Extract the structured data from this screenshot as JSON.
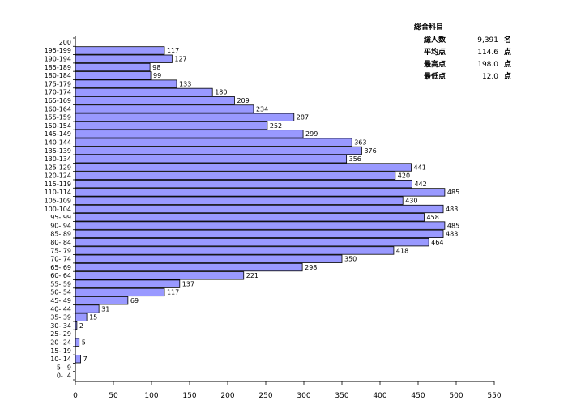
{
  "chart_data": {
    "type": "bar",
    "orientation": "horizontal",
    "categories": [
      "200",
      "195-199",
      "190-194",
      "185-189",
      "180-184",
      "175-179",
      "170-174",
      "165-169",
      "160-164",
      "155-159",
      "150-154",
      "145-149",
      "140-144",
      "135-139",
      "130-134",
      "125-129",
      "120-124",
      "115-119",
      "110-114",
      "105-109",
      "100-104",
      "95- 99",
      "90- 94",
      "85- 89",
      "80- 84",
      "75- 79",
      "70- 74",
      "65- 69",
      "60- 64",
      "55- 59",
      "50- 54",
      "45- 49",
      "40- 44",
      "35- 39",
      "30- 34",
      "25- 29",
      "20- 24",
      "15- 19",
      "10- 14",
      "5-  9",
      "0-  4"
    ],
    "values": [
      0,
      117,
      127,
      98,
      99,
      133,
      180,
      209,
      234,
      287,
      252,
      299,
      363,
      376,
      356,
      441,
      420,
      442,
      485,
      430,
      483,
      458,
      485,
      483,
      464,
      418,
      350,
      298,
      221,
      137,
      117,
      69,
      31,
      15,
      2,
      0,
      5,
      0,
      7,
      0,
      0
    ],
    "xlim": [
      0,
      550
    ],
    "xticks": [
      0,
      50,
      100,
      150,
      200,
      250,
      300,
      350,
      400,
      450,
      500,
      550
    ],
    "bar_color": "#9999ff",
    "bar_border_color": "#000000",
    "grid": false,
    "legend": false
  },
  "stats": {
    "title": "総合科目",
    "rows": [
      {
        "label": "総人数",
        "value": "9,391",
        "unit": "名"
      },
      {
        "label": "平均点",
        "value": "114.6",
        "unit": "点"
      },
      {
        "label": "最高点",
        "value": "198.0",
        "unit": "点"
      },
      {
        "label": "最低点",
        "value": "12.0",
        "unit": "点"
      }
    ]
  }
}
